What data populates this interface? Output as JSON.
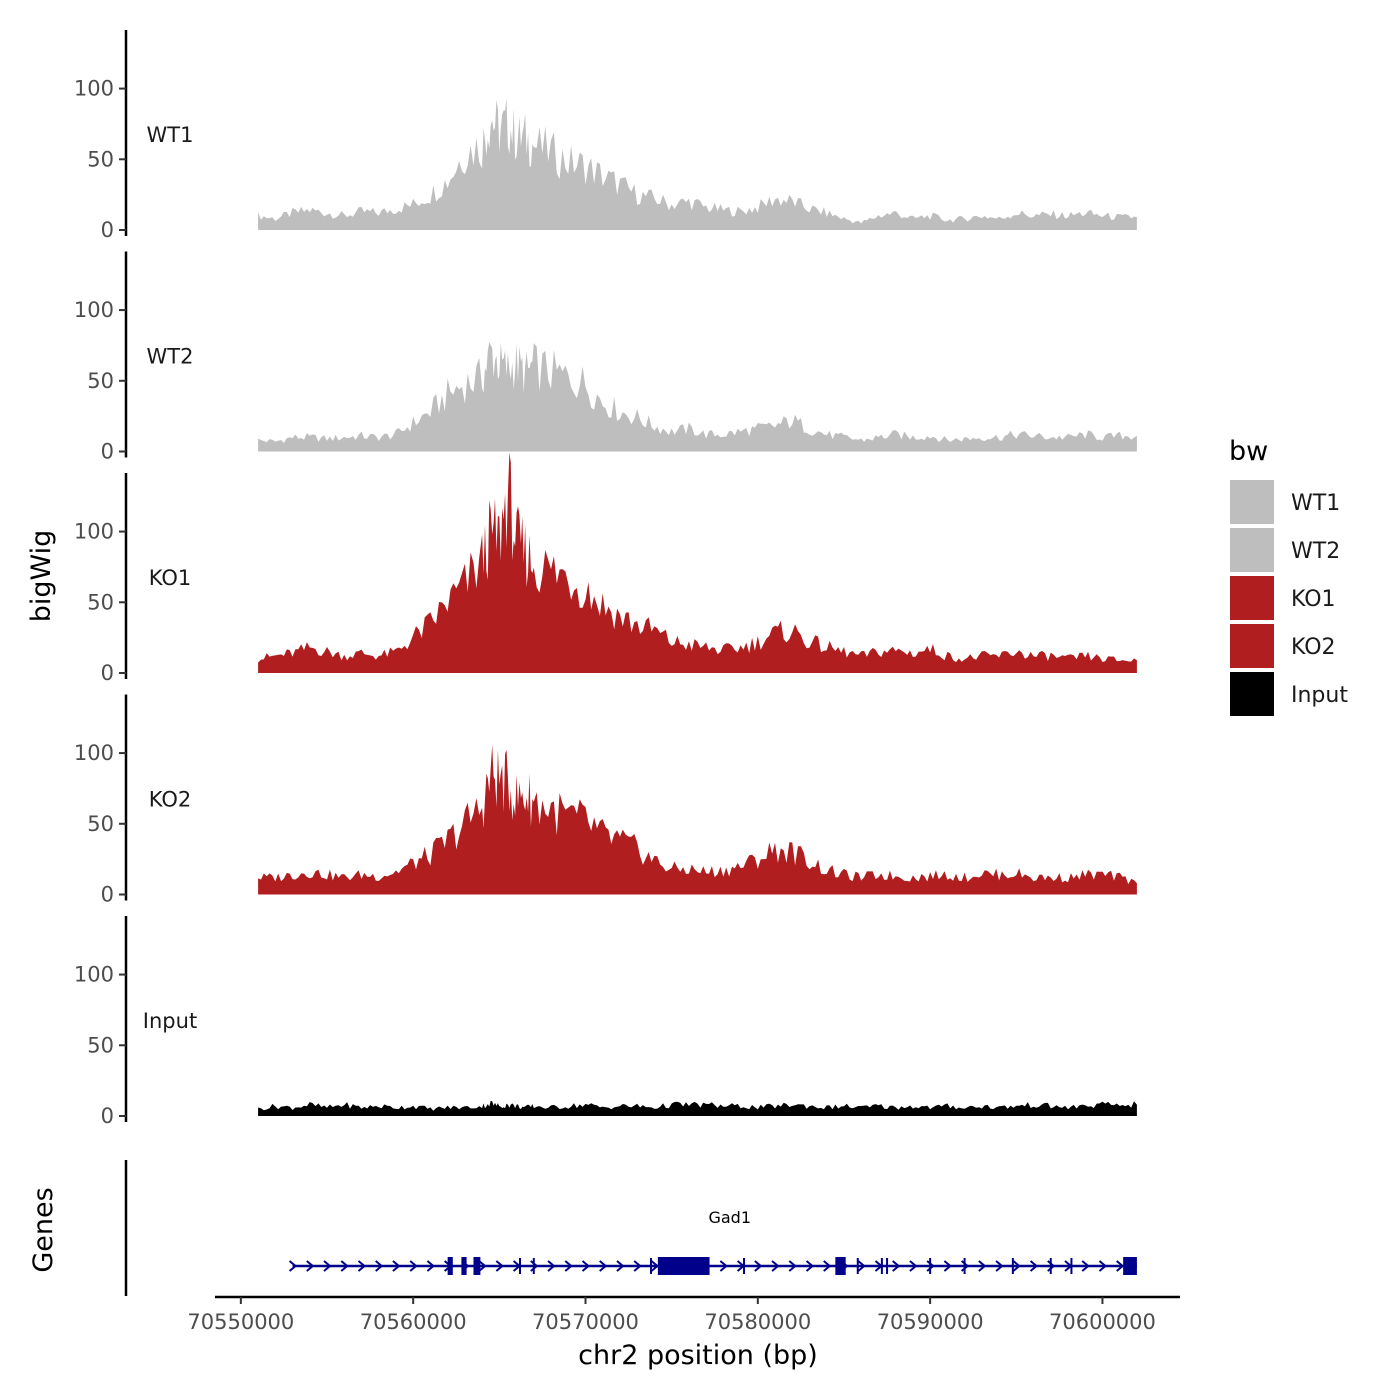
{
  "chart_data": {
    "type": "area",
    "description": "Genome browser coverage tracks (bigWig) over Gad1 locus",
    "x_range": [
      70551000,
      70602000
    ],
    "xlim": [
      70548500,
      70604500
    ],
    "x_ticks": [
      70550000,
      70560000,
      70570000,
      70580000,
      70590000,
      70600000
    ],
    "x_tick_labels": [
      "70550000",
      "70560000",
      "70570000",
      "70580000",
      "70590000",
      "70600000"
    ],
    "xlabel": "chr2 position (bp)",
    "ylabel": "bigWig",
    "ylim": [
      0,
      140
    ],
    "y_ticks": [
      0,
      50,
      100
    ],
    "y_tick_labels": [
      "0",
      "50",
      "100"
    ],
    "x_positions": [
      70551000,
      70552000,
      70553000,
      70554000,
      70555000,
      70556000,
      70557000,
      70558000,
      70559000,
      70560000,
      70561000,
      70562000,
      70563000,
      70564000,
      70564500,
      70565000,
      70565500,
      70566000,
      70566500,
      70567000,
      70568000,
      70569000,
      70570000,
      70571000,
      70572000,
      70573000,
      70574000,
      70575000,
      70576000,
      70577000,
      70578000,
      70579000,
      70580000,
      70581000,
      70582000,
      70583000,
      70584000,
      70585000,
      70586000,
      70587000,
      70588000,
      70589000,
      70590000,
      70591000,
      70592000,
      70593000,
      70594000,
      70595000,
      70596000,
      70597000,
      70598000,
      70599000,
      70600000,
      70601000,
      70602000
    ],
    "series": [
      {
        "name": "WT1",
        "color": "#bebebe",
        "values": [
          10,
          8,
          12,
          14,
          12,
          10,
          13,
          12,
          15,
          18,
          25,
          35,
          55,
          60,
          80,
          70,
          75,
          65,
          65,
          60,
          55,
          48,
          45,
          38,
          32,
          25,
          22,
          18,
          20,
          16,
          14,
          13,
          16,
          22,
          20,
          15,
          12,
          8,
          5,
          10,
          12,
          8,
          10,
          7,
          8,
          10,
          8,
          12,
          10,
          11,
          10,
          12,
          10,
          9,
          9
        ]
      },
      {
        "name": "WT2",
        "color": "#bebebe",
        "values": [
          8,
          7,
          10,
          10,
          9,
          10,
          11,
          10,
          12,
          20,
          28,
          40,
          48,
          52,
          70,
          62,
          58,
          62,
          55,
          60,
          56,
          52,
          48,
          35,
          28,
          24,
          18,
          14,
          16,
          12,
          12,
          14,
          16,
          18,
          22,
          16,
          12,
          10,
          8,
          10,
          12,
          10,
          11,
          8,
          9,
          10,
          10,
          12,
          11,
          10,
          10,
          12,
          10,
          11,
          11
        ]
      },
      {
        "name": "KO1",
        "color": "#b01e20",
        "values": [
          10,
          12,
          14,
          18,
          15,
          12,
          14,
          12,
          15,
          25,
          35,
          50,
          62,
          80,
          98,
          95,
          130,
          92,
          85,
          78,
          72,
          68,
          60,
          48,
          40,
          34,
          30,
          22,
          20,
          18,
          16,
          18,
          22,
          28,
          30,
          22,
          18,
          15,
          12,
          15,
          16,
          14,
          17,
          12,
          10,
          12,
          12,
          15,
          12,
          12,
          10,
          12,
          10,
          9,
          9
        ]
      },
      {
        "name": "KO2",
        "color": "#b01e20",
        "values": [
          12,
          12,
          14,
          16,
          14,
          12,
          14,
          13,
          16,
          22,
          28,
          38,
          50,
          62,
          85,
          82,
          78,
          68,
          70,
          66,
          60,
          55,
          52,
          42,
          38,
          32,
          24,
          18,
          18,
          16,
          17,
          20,
          25,
          32,
          30,
          24,
          17,
          14,
          12,
          14,
          13,
          12,
          13,
          14,
          12,
          15,
          14,
          15,
          12,
          12,
          12,
          14,
          14,
          12,
          8
        ]
      },
      {
        "name": "Input",
        "color": "#000000",
        "values": [
          5,
          7,
          6,
          8,
          6,
          8,
          6,
          7,
          6,
          7,
          5,
          6,
          6,
          7,
          9,
          7,
          8,
          7,
          6,
          7,
          6,
          7,
          8,
          6,
          7,
          7,
          6,
          8,
          8,
          8,
          7,
          7,
          6,
          7,
          8,
          7,
          6,
          7,
          6,
          7,
          6,
          7,
          6,
          7,
          6,
          7,
          6,
          7,
          8,
          7,
          6,
          7,
          8,
          8,
          8
        ]
      }
    ],
    "genes": {
      "label": "Genes",
      "name": "Gad1",
      "color": "#00008b",
      "strand": "+",
      "start": 70553000,
      "end": 70602000,
      "exons": [
        [
          70562000,
          70562300
        ],
        [
          70562800,
          70563100
        ],
        [
          70563500,
          70563900
        ],
        [
          70574200,
          70577200
        ],
        [
          70584500,
          70585100
        ],
        [
          70601200,
          70602000
        ]
      ],
      "markers": [
        70566200,
        70567000,
        70573800,
        70579200,
        70585800,
        70587200,
        70587500,
        70590000,
        70592000,
        70594800,
        70597000,
        70598200
      ]
    },
    "legend": {
      "title": "bw",
      "position": "right",
      "entries": [
        {
          "label": "WT1",
          "color": "#bebebe"
        },
        {
          "label": "WT2",
          "color": "#bebebe"
        },
        {
          "label": "KO1",
          "color": "#b01e20"
        },
        {
          "label": "KO2",
          "color": "#b01e20"
        },
        {
          "label": "Input",
          "color": "#000000"
        }
      ]
    }
  }
}
